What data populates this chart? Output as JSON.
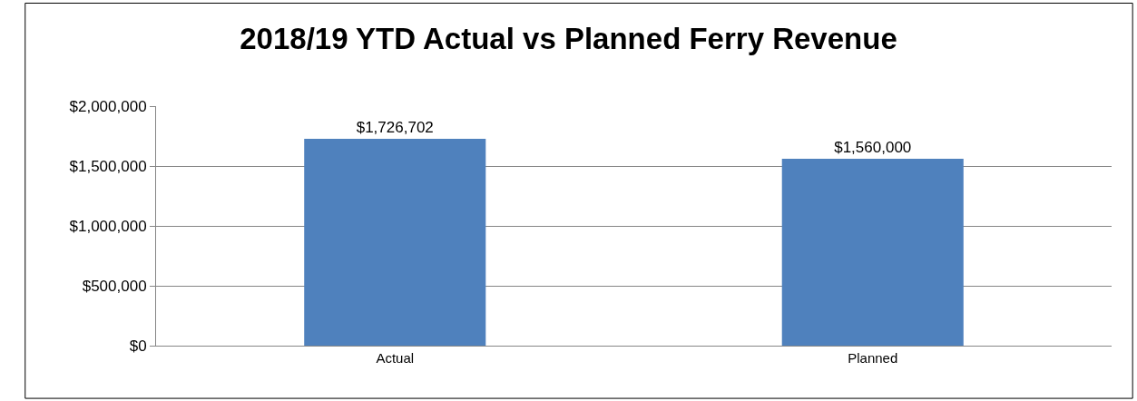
{
  "chart_data": {
    "type": "bar",
    "title": "2018/19 YTD Actual vs Planned Ferry Revenue",
    "categories": [
      "Actual",
      "Planned"
    ],
    "values": [
      1726702,
      1560000
    ],
    "value_labels": [
      "$1,726,702",
      "$1,560,000"
    ],
    "color": "#4f81bd",
    "ylim": [
      0,
      2000000
    ],
    "yticks": [
      {
        "value": 0,
        "label": "$0"
      },
      {
        "value": 500000,
        "label": "$500,000"
      },
      {
        "value": 1000000,
        "label": "$1,000,000"
      },
      {
        "value": 1500000,
        "label": "$1,500,000"
      },
      {
        "value": 2000000,
        "label": "$2,000,000"
      }
    ],
    "grid": "y",
    "legend": false
  }
}
